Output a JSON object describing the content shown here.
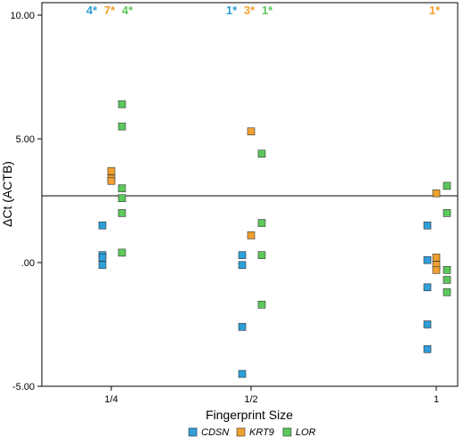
{
  "chart_data": {
    "type": "scatter",
    "xlabel": "Fingerprint Size",
    "ylabel": "ΔCt (ACTB)",
    "categories": [
      "1/4",
      "1/2",
      "1"
    ],
    "ylim": [
      -5.0,
      10.0
    ],
    "yticks": [
      {
        "value": 10.0,
        "label": "10.00"
      },
      {
        "value": 5.0,
        "label": "5.00"
      },
      {
        "value": 0.0,
        "label": ".00"
      },
      {
        "value": -5.0,
        "label": "-5.00"
      }
    ],
    "reference_line": 2.7,
    "legend_placement": "bottom",
    "series": [
      {
        "name": "CDSN",
        "color": "#2e9fd9",
        "points": [
          {
            "x": "1/4",
            "y": 1.5
          },
          {
            "x": "1/4",
            "y": 0.3
          },
          {
            "x": "1/4",
            "y": 0.2
          },
          {
            "x": "1/4",
            "y": -0.1
          },
          {
            "x": "1/2",
            "y": 0.3
          },
          {
            "x": "1/2",
            "y": -0.1
          },
          {
            "x": "1/2",
            "y": -2.6
          },
          {
            "x": "1/2",
            "y": -4.5
          },
          {
            "x": "1",
            "y": 1.5
          },
          {
            "x": "1",
            "y": 0.1
          },
          {
            "x": "1",
            "y": -1.0
          },
          {
            "x": "1",
            "y": -2.5
          },
          {
            "x": "1",
            "y": -3.5
          }
        ]
      },
      {
        "name": "KRT9",
        "color": "#f0a030",
        "points": [
          {
            "x": "1/4",
            "y": 3.7
          },
          {
            "x": "1/4",
            "y": 3.4
          },
          {
            "x": "1/4",
            "y": 3.3
          },
          {
            "x": "1/2",
            "y": 5.3
          },
          {
            "x": "1/2",
            "y": 1.1
          },
          {
            "x": "1",
            "y": 2.8
          },
          {
            "x": "1",
            "y": 0.2
          },
          {
            "x": "1",
            "y": -0.1
          },
          {
            "x": "1",
            "y": -0.3
          }
        ]
      },
      {
        "name": "LOR",
        "color": "#5cc85c",
        "points": [
          {
            "x": "1/4",
            "y": 6.4
          },
          {
            "x": "1/4",
            "y": 5.5
          },
          {
            "x": "1/4",
            "y": 3.0
          },
          {
            "x": "1/4",
            "y": 2.6
          },
          {
            "x": "1/4",
            "y": 2.0
          },
          {
            "x": "1/4",
            "y": 0.4
          },
          {
            "x": "1/2",
            "y": 4.4
          },
          {
            "x": "1/2",
            "y": 1.6
          },
          {
            "x": "1/2",
            "y": 0.3
          },
          {
            "x": "1/2",
            "y": -1.7
          },
          {
            "x": "1",
            "y": 3.1
          },
          {
            "x": "1",
            "y": 2.0
          },
          {
            "x": "1",
            "y": -0.3
          },
          {
            "x": "1",
            "y": -0.7
          },
          {
            "x": "1",
            "y": -1.2
          }
        ]
      }
    ],
    "annotations": [
      {
        "category": "1/4",
        "items": [
          {
            "text": "4*",
            "series": "CDSN"
          },
          {
            "text": "7*",
            "series": "KRT9"
          },
          {
            "text": "4*",
            "series": "LOR"
          }
        ]
      },
      {
        "category": "1/2",
        "items": [
          {
            "text": "1*",
            "series": "CDSN"
          },
          {
            "text": "3*",
            "series": "KRT9"
          },
          {
            "text": "1*",
            "series": "LOR"
          }
        ]
      },
      {
        "category": "1",
        "items": [
          {
            "text": "1*",
            "series": "KRT9"
          }
        ]
      }
    ]
  }
}
